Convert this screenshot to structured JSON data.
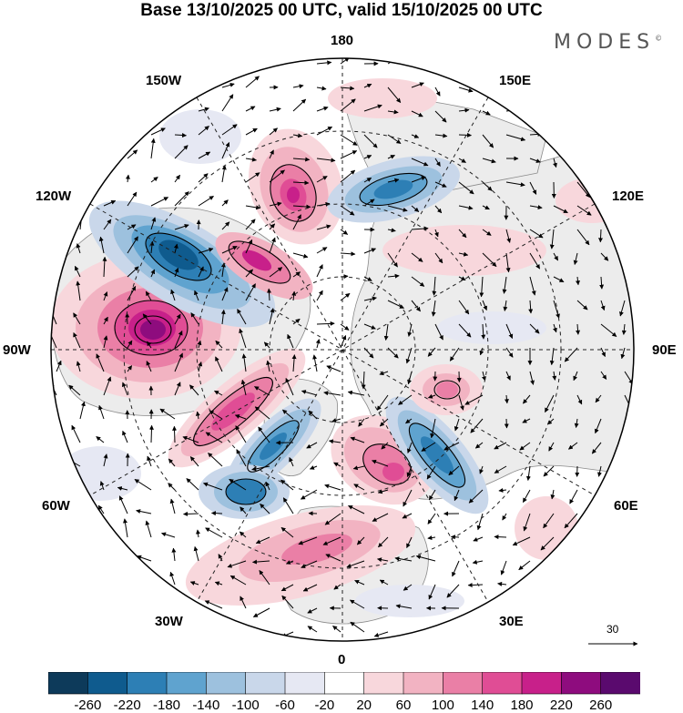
{
  "title": "Base 13/10/2025 00 UTC, valid 15/10/2025 00 UTC",
  "brand": "MODES",
  "brand_mark": "©",
  "longitude_labels": {
    "top": "180",
    "bottom": "0",
    "left": "90W",
    "right": "90E",
    "upper_left_1": "150W",
    "upper_left_2": "120W",
    "upper_right_1": "150E",
    "upper_right_2": "120E",
    "lower_left_1": "60W",
    "lower_left_2": "30W",
    "lower_right_1": "60E",
    "lower_right_2": "30E"
  },
  "vector_scale_label": "30",
  "colorbar": {
    "ticks": [
      "-260",
      "-220",
      "-180",
      "-140",
      "-100",
      "-60",
      "-20",
      "20",
      "60",
      "100",
      "140",
      "180",
      "220",
      "260"
    ],
    "colors": [
      "#0d3a5a",
      "#0f5b8e",
      "#2d7fb5",
      "#5fa3cf",
      "#9dc1de",
      "#c9d7ea",
      "#e6e8f3",
      "#ffffff",
      "#f8d7dc",
      "#f2b3c2",
      "#ea7fa6",
      "#e04d95",
      "#c8208a",
      "#8e0c7e",
      "#5a0a6e"
    ]
  },
  "colors": {
    "land_gray": "#ececec",
    "coast": "#8a8a8a",
    "grid": "#222222"
  }
}
